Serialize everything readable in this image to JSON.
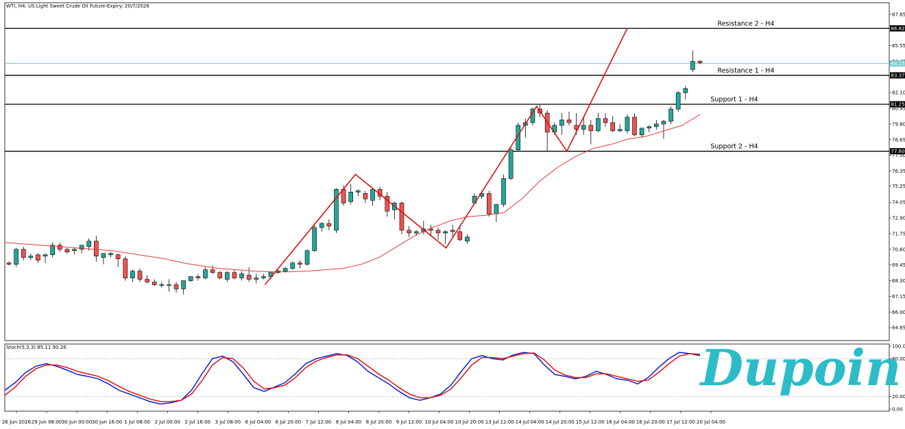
{
  "header": {
    "title": "WTI, H4:  US Light Sweet Crude Oil Future-Expiry: 20/7/2026",
    "stoch_label": "Stoch(5,3,3) 85.11 90.26"
  },
  "logo": {
    "text": "Dupoin",
    "color": "#2bbcc8"
  },
  "colors": {
    "bull": "#26a69a",
    "bear": "#ef5350",
    "ma": "#e53935",
    "zigzag": "#dd1111",
    "level": "#000000",
    "current_price": "#7ec8c8",
    "stoch_main": "#0a1ecc",
    "stoch_signal": "#e01010"
  },
  "chart_data": [
    {
      "type": "candlestick",
      "title": "WTI, H4:  US Light Sweet Crude Oil Future-Expiry: 20/7/2026",
      "y_ticks": [
        "87.85",
        "85.55",
        "84.40",
        "82.10",
        "80.95",
        "79.80",
        "78.65",
        "77.50",
        "76.35",
        "75.25",
        "74.05",
        "72.90",
        "71.75",
        "70.60",
        "69.45",
        "68.30",
        "67.15",
        "66.00",
        "64.85"
      ],
      "ylim": [
        63.9,
        88.7
      ],
      "x_ticks": [
        "26 Jun 2026",
        "29 Jun 08:00",
        "30 Jun 00:00",
        "30 Jun 16:00",
        "1 Jul 08:00",
        "2 Jul 00:00",
        "2 Jul 16:00",
        "3 Jul 08:00",
        "6 Jul 04:00",
        "6 Jul 20:00",
        "7 Jul 12:00",
        "8 Jul 04:00",
        "8 Jul 20:00",
        "9 Jul 12:00",
        "10 Jul 04:00",
        "10 Jul 20:00",
        "13 Jul 12:00",
        "14 Jul 04:00",
        "14 Jul 20:00",
        "15 Jul 12:00",
        "16 Jul 04:00",
        "16 Jul 20:00",
        "17 Jul 12:00",
        "20 Jul 04:00"
      ],
      "levels": [
        {
          "name": "Resistance 2 - H4",
          "value": 86.82,
          "price_label": "86.82"
        },
        {
          "name": "Resistance 1 - H4",
          "value": 83.37,
          "price_label": "83.37"
        },
        {
          "name": "Support 1 - H4",
          "value": 81.25,
          "price_label": "81.25"
        },
        {
          "name": "Support 2 - H4",
          "value": 77.8,
          "price_label": "77.80"
        }
      ],
      "current_price": {
        "value": 84.25,
        "label": "84.25"
      },
      "candles": [
        [
          69.6,
          69.7,
          69.4,
          69.5
        ],
        [
          69.5,
          70.7,
          69.3,
          70.6
        ],
        [
          70.6,
          70.8,
          69.8,
          70.0
        ],
        [
          70.0,
          70.3,
          69.8,
          70.1
        ],
        [
          70.2,
          70.3,
          69.6,
          69.8
        ],
        [
          70.1,
          70.3,
          69.6,
          70.2
        ],
        [
          70.2,
          71.1,
          70.0,
          70.9
        ],
        [
          70.9,
          71.1,
          70.4,
          70.6
        ],
        [
          70.6,
          70.7,
          70.3,
          70.4
        ],
        [
          70.5,
          70.7,
          70.2,
          70.6
        ],
        [
          70.6,
          70.8,
          70.3,
          70.9
        ],
        [
          70.8,
          71.4,
          70.5,
          71.2
        ],
        [
          71.2,
          71.6,
          69.7,
          70.1
        ],
        [
          70.0,
          70.3,
          69.5,
          70.3
        ],
        [
          70.2,
          70.4,
          70.0,
          70.3
        ],
        [
          70.2,
          70.3,
          69.3,
          69.9
        ],
        [
          69.9,
          70.1,
          68.3,
          68.5
        ],
        [
          68.5,
          69.1,
          68.2,
          69.0
        ],
        [
          69.0,
          69.2,
          68.2,
          68.4
        ],
        [
          68.4,
          68.7,
          68.1,
          68.2
        ],
        [
          68.2,
          68.4,
          67.9,
          68.0
        ],
        [
          68.0,
          68.2,
          67.8,
          68.0
        ],
        [
          68.0,
          68.4,
          67.5,
          68.0
        ],
        [
          68.0,
          68.2,
          67.4,
          67.7
        ],
        [
          67.7,
          68.2,
          67.3,
          68.3
        ],
        [
          68.3,
          68.6,
          68.2,
          68.6
        ],
        [
          68.6,
          68.8,
          68.3,
          68.5
        ],
        [
          68.5,
          69.3,
          68.4,
          69.1
        ],
        [
          69.1,
          69.4,
          68.8,
          68.9
        ],
        [
          68.9,
          69.0,
          68.4,
          68.5
        ],
        [
          68.4,
          69.0,
          68.2,
          68.9
        ],
        [
          68.9,
          69.1,
          68.4,
          68.5
        ],
        [
          68.5,
          69.0,
          68.3,
          68.8
        ],
        [
          68.7,
          69.3,
          68.2,
          68.4
        ],
        [
          68.4,
          68.8,
          68.1,
          68.5
        ],
        [
          68.5,
          68.8,
          68.4,
          68.6
        ],
        [
          68.6,
          68.9,
          68.4,
          68.9
        ],
        [
          68.9,
          69.1,
          68.8,
          69.0
        ],
        [
          69.0,
          69.3,
          68.9,
          69.2
        ],
        [
          69.2,
          69.7,
          69.1,
          69.6
        ],
        [
          69.6,
          69.8,
          69.2,
          69.5
        ],
        [
          69.5,
          70.6,
          69.4,
          70.5
        ],
        [
          70.5,
          72.4,
          70.4,
          72.2
        ],
        [
          72.2,
          72.6,
          71.9,
          72.5
        ],
        [
          72.5,
          72.8,
          72.0,
          72.3
        ],
        [
          72.0,
          75.1,
          71.8,
          75.0
        ],
        [
          75.0,
          75.3,
          73.8,
          74.0
        ],
        [
          74.1,
          75.4,
          73.9,
          74.8
        ],
        [
          74.8,
          75.0,
          74.5,
          74.9
        ],
        [
          74.7,
          74.9,
          74.0,
          74.3
        ],
        [
          74.2,
          75.1,
          73.8,
          75.0
        ],
        [
          75.0,
          75.2,
          74.2,
          74.5
        ],
        [
          74.5,
          74.8,
          73.0,
          73.4
        ],
        [
          73.5,
          74.1,
          72.8,
          74.0
        ],
        [
          74.0,
          74.1,
          71.7,
          72.0
        ],
        [
          72.0,
          72.3,
          71.5,
          71.8
        ],
        [
          71.8,
          72.0,
          71.6,
          71.9
        ],
        [
          71.9,
          72.7,
          71.7,
          72.1
        ],
        [
          72.1,
          72.4,
          71.6,
          72.0
        ],
        [
          72.0,
          72.2,
          71.3,
          71.8
        ],
        [
          71.8,
          72.0,
          71.0,
          71.9
        ],
        [
          72.0,
          72.4,
          71.5,
          71.9
        ],
        [
          71.9,
          72.3,
          71.2,
          71.3
        ],
        [
          71.2,
          71.7,
          71.0,
          71.5
        ],
        [
          74.0,
          74.7,
          73.9,
          74.5
        ],
        [
          74.5,
          74.9,
          74.3,
          74.7
        ],
        [
          74.7,
          74.9,
          73.0,
          73.2
        ],
        [
          73.2,
          73.9,
          72.6,
          73.9
        ],
        [
          73.9,
          76.1,
          73.7,
          75.8
        ],
        [
          75.8,
          78.1,
          75.7,
          77.9
        ],
        [
          77.9,
          79.9,
          77.8,
          79.7
        ],
        [
          79.7,
          80.2,
          78.8,
          79.9
        ],
        [
          79.9,
          81.0,
          79.7,
          80.9
        ],
        [
          80.9,
          81.2,
          80.3,
          80.6
        ],
        [
          80.6,
          80.8,
          77.8,
          79.2
        ],
        [
          79.2,
          79.9,
          79.0,
          79.7
        ],
        [
          79.7,
          80.6,
          79.0,
          80.1
        ],
        [
          80.1,
          80.7,
          79.7,
          79.9
        ],
        [
          79.7,
          80.6,
          79.0,
          79.4
        ],
        [
          79.4,
          80.3,
          79.0,
          79.7
        ],
        [
          79.7,
          80.1,
          78.3,
          79.3
        ],
        [
          79.3,
          80.6,
          79.2,
          80.2
        ],
        [
          80.2,
          80.6,
          79.6,
          79.9
        ],
        [
          79.9,
          80.4,
          79.2,
          79.3
        ],
        [
          79.3,
          79.8,
          79.2,
          79.4
        ],
        [
          79.3,
          80.5,
          79.1,
          80.3
        ],
        [
          80.3,
          80.6,
          78.9,
          79.0
        ],
        [
          79.0,
          79.4,
          78.8,
          79.5
        ],
        [
          79.5,
          79.7,
          79.2,
          79.6
        ],
        [
          79.6,
          80.1,
          79.4,
          79.8
        ],
        [
          79.8,
          80.1,
          78.7,
          80.0
        ],
        [
          80.0,
          81.1,
          79.8,
          80.9
        ],
        [
          80.9,
          82.2,
          80.7,
          82.1
        ],
        [
          82.1,
          82.6,
          81.6,
          82.4
        ],
        [
          83.8,
          85.2,
          83.6,
          84.4
        ],
        [
          84.4,
          84.5,
          84.2,
          84.3
        ]
      ],
      "moving_average": [
        71.1,
        71.0,
        70.9,
        70.8,
        70.7,
        70.6,
        70.5,
        70.3,
        70.1,
        69.9,
        69.6,
        69.4,
        69.2,
        69.1,
        69.0,
        68.95,
        68.95,
        69.0,
        69.1,
        69.2,
        69.5,
        70.0,
        70.8,
        71.6,
        72.2,
        72.7,
        73.0,
        73.1,
        73.3,
        74.3,
        75.6,
        76.6,
        77.4,
        78.0,
        78.3,
        78.7,
        78.9,
        79.3,
        79.7,
        80.5
      ],
      "zigzag": [
        [
          68.0,
          "6 Jul 04:00"
        ],
        [
          76.1,
          "8 Jul 04:00"
        ],
        [
          70.7,
          "10 Jul 04:00"
        ],
        [
          81.1,
          "14 Jul 04:00"
        ],
        [
          77.8,
          "14 Jul 20:00"
        ],
        [
          86.82,
          "16 Jul 04:00"
        ]
      ]
    },
    {
      "type": "line",
      "title": "Stoch(5,3,3) 85.11 90.26",
      "y_ticks": [
        "100.00",
        "80.00",
        "20.00",
        "0.00"
      ],
      "ylim": [
        0,
        100
      ],
      "series": [
        {
          "name": "main",
          "values": [
            30,
            42,
            58,
            68,
            72,
            68,
            62,
            55,
            52,
            48,
            40,
            30,
            24,
            18,
            12,
            8,
            10,
            14,
            30,
            56,
            80,
            84,
            75,
            55,
            34,
            28,
            35,
            42,
            56,
            72,
            80,
            84,
            88,
            85,
            75,
            60,
            50,
            40,
            28,
            18,
            14,
            18,
            24,
            38,
            60,
            80,
            85,
            80,
            78,
            86,
            90,
            88,
            70,
            55,
            52,
            48,
            52,
            60,
            55,
            48,
            46,
            40,
            50,
            66,
            80,
            90,
            88,
            85
          ]
        },
        {
          "name": "signal",
          "values": [
            22,
            35,
            52,
            64,
            70,
            70,
            66,
            60,
            56,
            52,
            45,
            36,
            28,
            22,
            16,
            12,
            12,
            14,
            24,
            45,
            70,
            82,
            80,
            65,
            44,
            32,
            34,
            38,
            50,
            66,
            76,
            82,
            86,
            86,
            80,
            68,
            56,
            46,
            34,
            24,
            18,
            18,
            22,
            32,
            50,
            70,
            82,
            82,
            80,
            84,
            88,
            89,
            78,
            62,
            54,
            50,
            50,
            56,
            56,
            52,
            48,
            44,
            46,
            58,
            72,
            84,
            88,
            87
          ]
        }
      ]
    }
  ]
}
